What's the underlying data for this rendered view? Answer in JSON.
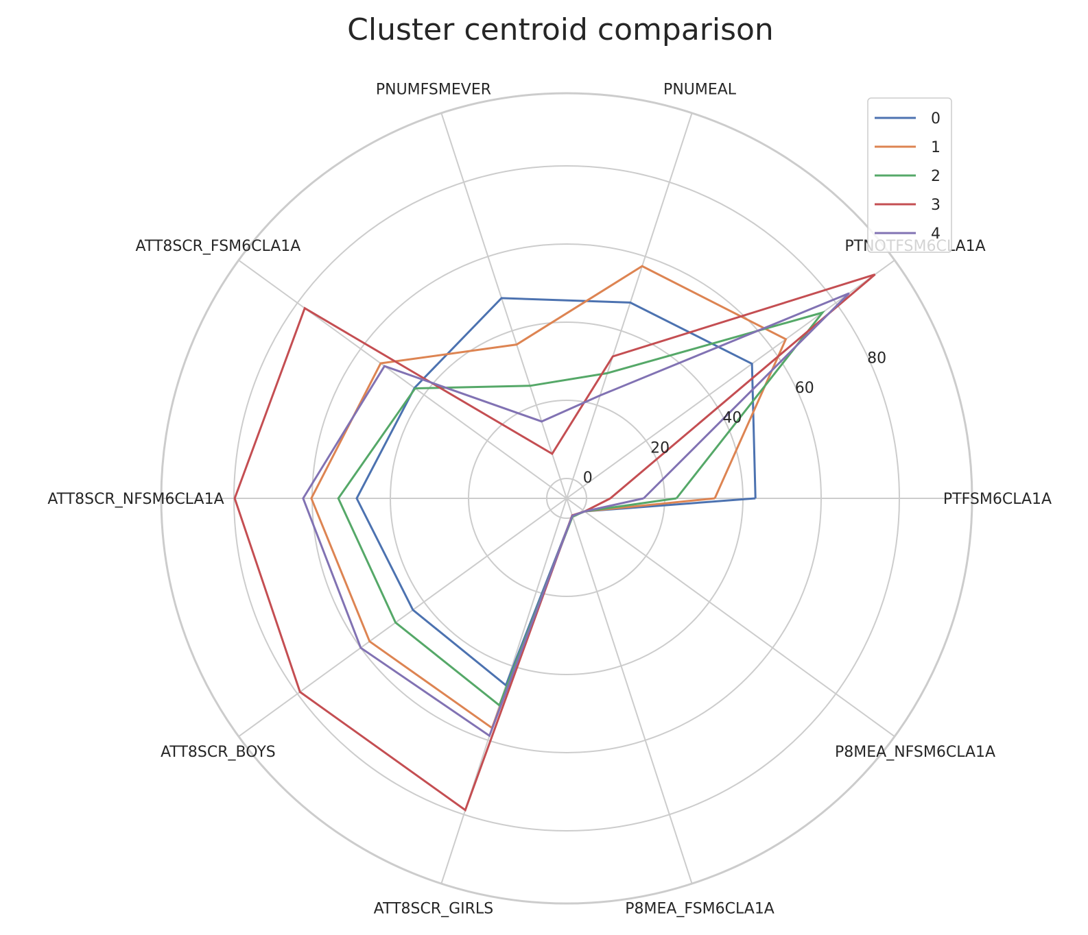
{
  "chart_data": {
    "type": "radar",
    "title": "Cluster centroid comparison",
    "categories": [
      "PTFSM6CLA1A",
      "PTNOTFSM6CLA1A",
      "PNUMEAL",
      "PNUMFSMEVER",
      "ATT8SCR_FSM6CLA1A",
      "ATT8SCR_NFSM6CLA1A",
      "ATT8SCR_BOYS",
      "ATT8SCR_GIRLS",
      "P8MEA_FSM6CLA1A",
      "P8MEA_NFSM6CLA1A"
    ],
    "rticks": [
      0,
      20,
      40,
      60,
      80
    ],
    "rtick_labels": [
      "0",
      "20",
      "40",
      "60",
      "80"
    ],
    "rlim": [
      -5,
      98.6
    ],
    "grid": true,
    "legend_position": "top-right",
    "series": [
      {
        "name": "0",
        "color": "#4c72b0",
        "values": [
          43.2,
          53.5,
          47.6,
          48.8,
          43.0,
          48.6,
          43.5,
          45.2,
          -0.4,
          0.6
        ]
      },
      {
        "name": "1",
        "color": "#dd8452",
        "values": [
          32.8,
          64.2,
          57.4,
          36.3,
          53.7,
          60.2,
          57.2,
          56.7,
          -0.4,
          0.6
        ]
      },
      {
        "name": "2",
        "color": "#55a868",
        "values": [
          23.0,
          75.8,
          28.6,
          25.2,
          42.8,
          53.3,
          49.0,
          50.6,
          -0.2,
          0.6
        ]
      },
      {
        "name": "3",
        "color": "#c44e52",
        "values": [
          6.1,
          92.4,
          33.1,
          6.9,
          77.7,
          79.8,
          79.2,
          78.8,
          -0.5,
          0.6
        ]
      },
      {
        "name": "4",
        "color": "#8172b3",
        "values": [
          14.6,
          84.2,
          22.6,
          15.6,
          52.5,
          62.3,
          60.0,
          58.8,
          -0.4,
          0.6
        ]
      }
    ]
  }
}
